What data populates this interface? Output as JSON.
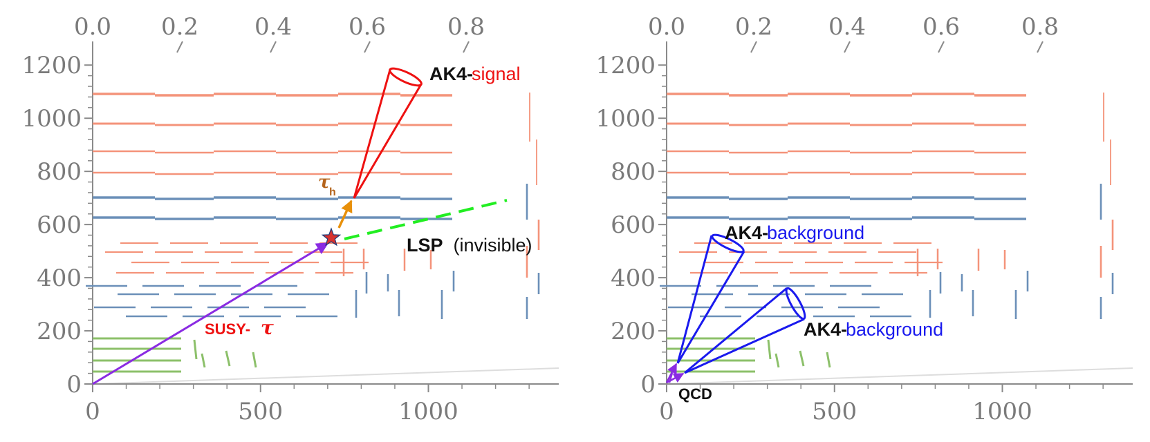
{
  "colors": {
    "salmon": "#f4937a",
    "blue": "#6b8fb8",
    "green": "#8cc06a",
    "signal": "#ee1111",
    "background": "#1a1aee",
    "purple": "#8a2be2",
    "orange": "#e8900a",
    "lsp": "#22ee22",
    "axis": "#8a8a8a"
  },
  "axes": {
    "top_ticks": [
      "0.0",
      "0.2",
      "0.4",
      "0.6",
      "0.8"
    ],
    "left_ticks": [
      "0",
      "200",
      "400",
      "600",
      "800",
      "1000",
      "1200"
    ],
    "bottom_ticks": [
      "0",
      "500",
      "1000"
    ]
  },
  "left_panel": {
    "signal_label_main": "AK4-",
    "signal_label_accent": "signal",
    "tau_label": "τ",
    "tau_sub": "h",
    "lsp_label_main": "LSP",
    "lsp_label_rest": " (invisible)",
    "susy_label": "SUSY-",
    "susy_tau": "τ"
  },
  "right_panel": {
    "bg_label_1_main": "AK4-",
    "bg_label_1_accent": "background",
    "bg_label_2_main": "AK4-",
    "bg_label_2_accent": "background",
    "qcd_label": "QCD"
  }
}
